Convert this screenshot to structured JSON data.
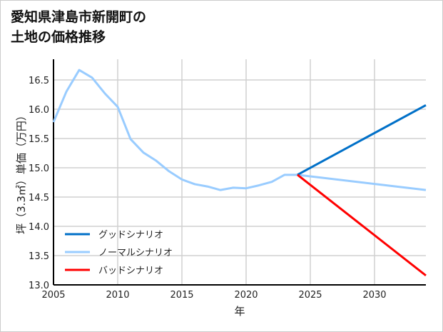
{
  "chart_data": {
    "type": "line",
    "title_lines": [
      "愛知県津島市新開町の",
      "土地の価格推移"
    ],
    "xlabel": "年",
    "ylabel": "坪（3.3㎡）単価（万円）",
    "xlim": [
      2005,
      2034
    ],
    "ylim": [
      13.0,
      16.8
    ],
    "xticks": [
      2005,
      2010,
      2015,
      2020,
      2025,
      2030
    ],
    "yticks": [
      13.0,
      13.5,
      14.0,
      14.5,
      15.0,
      15.5,
      16.0,
      16.5
    ],
    "grid": true,
    "legend_position": "bottom-left",
    "series": [
      {
        "name": "グッドシナリオ",
        "color": "#0070c8",
        "x": [
          2024,
          2034
        ],
        "y": [
          14.88,
          16.07
        ]
      },
      {
        "name": "ノーマルシナリオ",
        "color": "#99ccff",
        "x": [
          2005,
          2006,
          2007,
          2008,
          2009,
          2010,
          2011,
          2012,
          2013,
          2014,
          2015,
          2016,
          2017,
          2018,
          2019,
          2020,
          2021,
          2022,
          2023,
          2024,
          2034
        ],
        "y": [
          15.78,
          16.3,
          16.67,
          16.54,
          16.27,
          16.04,
          15.49,
          15.26,
          15.12,
          14.94,
          14.8,
          14.72,
          14.68,
          14.62,
          14.66,
          14.65,
          14.7,
          14.76,
          14.88,
          14.88,
          14.62
        ]
      },
      {
        "name": "バッドシナリオ",
        "color": "#ff0000",
        "x": [
          2024,
          2034
        ],
        "y": [
          14.88,
          13.16
        ]
      }
    ]
  }
}
